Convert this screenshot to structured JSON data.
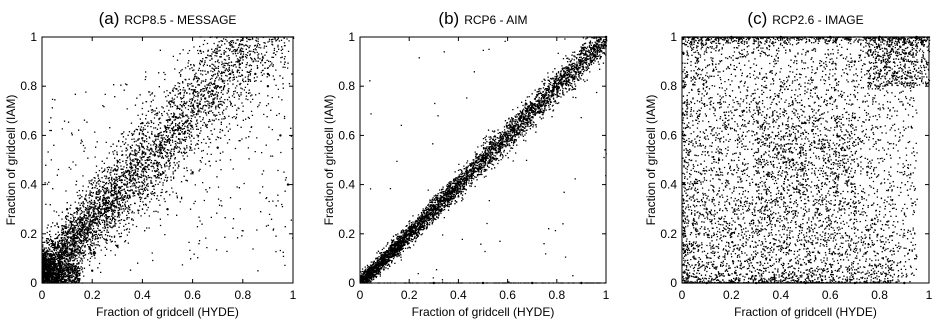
{
  "figure": {
    "colors": {
      "points": "#000000",
      "axes": "#000000",
      "background": "#ffffff"
    }
  },
  "chart_data": [
    {
      "type": "scatter",
      "title_tag": "(a)",
      "title_name": "RCP8.5 - MESSAGE",
      "xlabel": "Fraction of gridcell (HYDE)",
      "ylabel": "Fraction of gridcell (IAM)",
      "xlim": [
        0,
        1
      ],
      "ylim": [
        0,
        1
      ],
      "xticks": [
        "0",
        "0.2",
        "0.4",
        "0.6",
        "0.8",
        "1"
      ],
      "yticks": [
        "0",
        "0.2",
        "0.4",
        "0.6",
        "0.8",
        "1"
      ],
      "grid": false,
      "pattern": "wide band about y = 1.15x, dense near origin, spread to x = 1",
      "x": [
        0.02,
        0.05,
        0.08,
        0.1,
        0.12,
        0.15,
        0.18,
        0.2,
        0.22,
        0.25,
        0.28,
        0.3,
        0.33,
        0.35,
        0.38,
        0.4,
        0.42,
        0.45,
        0.48,
        0.5,
        0.52,
        0.55,
        0.58,
        0.6,
        0.62,
        0.65,
        0.68,
        0.7,
        0.72,
        0.75,
        0.78,
        0.8,
        0.85,
        0.9,
        0.95,
        0.98,
        0.1,
        0.3,
        0.5,
        0.7,
        0.9,
        0.6,
        0.4,
        0.2
      ],
      "y": [
        0.03,
        0.08,
        0.1,
        0.14,
        0.13,
        0.2,
        0.2,
        0.25,
        0.26,
        0.3,
        0.33,
        0.35,
        0.4,
        0.42,
        0.44,
        0.48,
        0.5,
        0.52,
        0.55,
        0.58,
        0.6,
        0.63,
        0.66,
        0.7,
        0.72,
        0.75,
        0.78,
        0.8,
        0.82,
        0.85,
        0.9,
        0.92,
        0.85,
        0.8,
        0.6,
        0.4,
        0.3,
        0.15,
        0.3,
        0.55,
        0.85,
        0.45,
        0.65,
        0.05
      ]
    },
    {
      "type": "scatter",
      "title_tag": "(b)",
      "title_name": "RCP6 - AIM",
      "xlabel": "Fraction of gridcell (HYDE)",
      "ylabel": "Fraction of gridcell (IAM)",
      "xlim": [
        0,
        1
      ],
      "ylim": [
        0,
        1
      ],
      "xticks": [
        "0",
        "0.2",
        "0.4",
        "0.6",
        "0.8",
        "1"
      ],
      "yticks": [
        "0",
        "0.2",
        "0.4",
        "0.6",
        "0.8",
        "1"
      ],
      "grid": false,
      "pattern": "tight band along y = x, with a row of points along y = 0",
      "x": [
        0.02,
        0.05,
        0.08,
        0.1,
        0.12,
        0.15,
        0.18,
        0.2,
        0.25,
        0.3,
        0.35,
        0.4,
        0.45,
        0.5,
        0.55,
        0.6,
        0.65,
        0.7,
        0.75,
        0.8,
        0.85,
        0.9,
        0.95,
        1.0,
        0.3,
        0.5,
        0.7,
        0.9
      ],
      "y": [
        0.02,
        0.06,
        0.08,
        0.11,
        0.12,
        0.16,
        0.18,
        0.2,
        0.26,
        0.3,
        0.36,
        0.4,
        0.46,
        0.5,
        0.56,
        0.6,
        0.66,
        0.7,
        0.76,
        0.8,
        0.86,
        0.9,
        0.96,
        1.0,
        0.0,
        0.0,
        0.0,
        0.0
      ]
    },
    {
      "type": "scatter",
      "title_tag": "(c)",
      "title_name": "RCP2.6 - IMAGE",
      "xlabel": "Fraction of gridcell (HYDE)",
      "ylabel": "Fraction of gridcell (IAM)",
      "xlim": [
        0,
        1
      ],
      "ylim": [
        0,
        1
      ],
      "xticks": [
        "0",
        "0.2",
        "0.4",
        "0.6",
        "0.8",
        "1"
      ],
      "yticks": [
        "0",
        "0.2",
        "0.4",
        "0.6",
        "0.8",
        "1"
      ],
      "grid": false,
      "pattern": "broadly scattered, dense rows along y = 0 and y = 1, cluster at upper right",
      "x": [
        0.05,
        0.1,
        0.15,
        0.2,
        0.25,
        0.3,
        0.35,
        0.4,
        0.45,
        0.5,
        0.55,
        0.6,
        0.65,
        0.7,
        0.75,
        0.8,
        0.85,
        0.9,
        0.95,
        0.1,
        0.3,
        0.5,
        0.7,
        0.9,
        0.2,
        0.4,
        0.6,
        0.8
      ],
      "y": [
        0.1,
        0.3,
        0.5,
        0.2,
        0.7,
        0.4,
        0.6,
        0.8,
        0.5,
        0.65,
        0.3,
        0.75,
        0.55,
        0.9,
        0.45,
        0.85,
        0.95,
        0.98,
        1.0,
        0.0,
        0.0,
        0.0,
        0.0,
        0.0,
        1.0,
        1.0,
        1.0,
        1.0
      ]
    }
  ]
}
